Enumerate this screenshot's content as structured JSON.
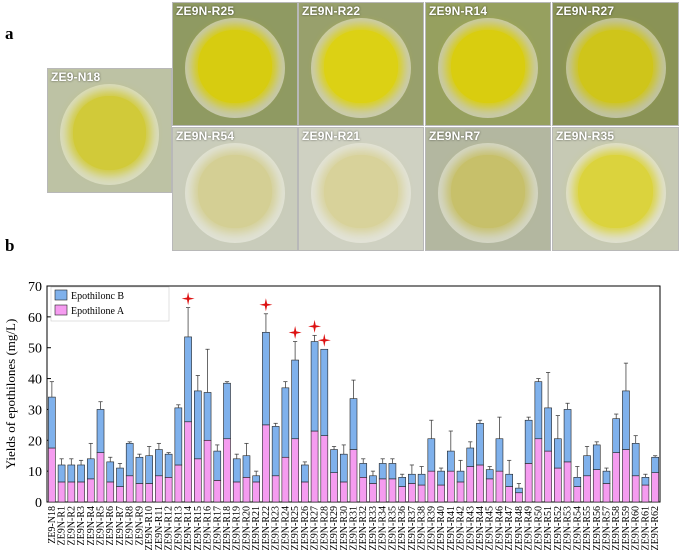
{
  "panel_labels": {
    "a": "a",
    "b": "b"
  },
  "photos": [
    {
      "name": "ZE9-N18",
      "plate": "#bdc2a4",
      "colony": "#d1ca39",
      "halo": "#d9dcc3"
    },
    {
      "name": "ZE9N-R25",
      "plate": "#8f9a62",
      "colony": "#d7cc10",
      "halo": "#c5c8ae"
    },
    {
      "name": "ZE9N-R22",
      "plate": "#98a06c",
      "colony": "#dcd114",
      "halo": "#c9cbb0"
    },
    {
      "name": "ZE9N-R14",
      "plate": "#96a05f",
      "colony": "#d9cd0f",
      "halo": "#c7c9ab"
    },
    {
      "name": "ZE9N-R27",
      "plate": "#8a9356",
      "colony": "#cfc51a",
      "halo": "#c0c3a5"
    },
    {
      "name": "ZE9N-R54",
      "plate": "#c9ccbb",
      "colony": "#d4cf94",
      "halo": "#e0e2d6"
    },
    {
      "name": "ZE9N-R21",
      "plate": "#cfd1c2",
      "colony": "#d8d29a",
      "halo": "#e2e3d8"
    },
    {
      "name": "ZE9N-R7",
      "plate": "#b3b7a0",
      "colony": "#c7c06a",
      "halo": "#d4d6c6"
    },
    {
      "name": "ZE9N-R35",
      "plate": "#c6c9b4",
      "colony": "#dbd33d",
      "halo": "#dfe0d2"
    }
  ],
  "chart_data": {
    "type": "bar",
    "stacked": true,
    "ylabel": "Yields of epothilones (mg/L)",
    "ylim": [
      0,
      70
    ],
    "yticks": [
      0,
      10,
      20,
      30,
      40,
      50,
      60,
      70
    ],
    "legend_position": "top-left",
    "categories": [
      "ZE9-N18",
      "ZE9N-R1",
      "ZE9N-R2",
      "ZE9N-R3",
      "ZE9N-R4",
      "ZE9N-R5",
      "ZE9N-R6",
      "ZE9N-R7",
      "ZE9N-R8",
      "ZE9N-R9",
      "ZE9N-R10",
      "ZE9N-R11",
      "ZE9N-R12",
      "ZE9N-R13",
      "ZE9N-R14",
      "ZE9N-R15",
      "ZE9N-R16",
      "ZE9N-R17",
      "ZE9N-R18",
      "ZE9N-R19",
      "ZE9N-R20",
      "ZE9N-R21",
      "ZE9N-R22",
      "ZE9N-R23",
      "ZE9N-R24",
      "ZE9N-R25",
      "ZE9N-R26",
      "ZE9N-R27",
      "ZE9N-R28",
      "ZE9N-R29",
      "ZE9N-R30",
      "ZE9N-R31",
      "ZE9N-R32",
      "ZE9N-R33",
      "ZE9N-R34",
      "ZE9N-R35",
      "ZE9N-R36",
      "ZE9N-R37",
      "ZE9N-R38",
      "ZE9N-R39",
      "ZE9N-R40",
      "ZE9N-R41",
      "ZE9N-R42",
      "ZE9N-R43",
      "ZE9N-R44",
      "ZE9N-R45",
      "ZE9N-R46",
      "ZE9N-R47",
      "ZE9N-R48",
      "ZE9N-R49",
      "ZE9N-R50",
      "ZE9N-R51",
      "ZE9N-R52",
      "ZE9N-R53",
      "ZE9N-R54",
      "ZE9N-R55",
      "ZE9N-R56",
      "ZE9N-R57",
      "ZE9N-R58",
      "ZE9N-R59",
      "ZE9N-R60",
      "ZE9N-R61",
      "ZE9N-R62"
    ],
    "series": [
      {
        "name": "Epothilone A",
        "color": "#f59cf0",
        "values": [
          17.5,
          6.5,
          6.5,
          6.5,
          7.5,
          16,
          6.5,
          5,
          8.5,
          6,
          6,
          8.5,
          8,
          12,
          26,
          14,
          20,
          7,
          20.5,
          6.5,
          8,
          6.5,
          25,
          8.5,
          14.5,
          20.5,
          6.5,
          23,
          21.5,
          9.5,
          6.5,
          17,
          8,
          6,
          7.5,
          7.5,
          5,
          6,
          5.5,
          10,
          5.5,
          10,
          6.5,
          11.5,
          12,
          7.5,
          10,
          5,
          3,
          12.5,
          20.5,
          16.5,
          11,
          13,
          5,
          8.5,
          10.5,
          6,
          16,
          17,
          8.5,
          5.5,
          9.5
        ]
      },
      {
        "name": "Epothilonc B",
        "color": "#7fb1ec",
        "values": [
          16.5,
          5.5,
          5.5,
          5.5,
          6.5,
          14,
          6.5,
          6,
          10.5,
          8.5,
          9,
          8.5,
          7.5,
          18.5,
          27.5,
          22,
          15.5,
          9.5,
          18,
          7.5,
          7,
          2,
          30,
          16,
          22.5,
          25.5,
          5.5,
          29,
          28,
          7.5,
          9,
          16.5,
          4.5,
          2.5,
          5,
          5,
          3,
          3,
          3.5,
          10.5,
          4.5,
          6.5,
          3.5,
          6,
          13.5,
          3,
          10.5,
          4,
          1.5,
          14,
          18.5,
          14,
          9.5,
          17,
          3,
          6.5,
          8,
          4,
          11,
          19,
          10.5,
          2.5,
          5
        ]
      },
      {
        "name": "error",
        "color": "#444444",
        "values": [
          5,
          2,
          2,
          1.5,
          5,
          2.5,
          1.5,
          1.5,
          0.5,
          1,
          3,
          2,
          0.5,
          1,
          9.5,
          5,
          14,
          2,
          0.5,
          1.5,
          4,
          1.5,
          6,
          1,
          2,
          6,
          1,
          2,
          0,
          1,
          3,
          6,
          1.5,
          1.5,
          1.5,
          1.5,
          1,
          3,
          2.5,
          6,
          1,
          6.5,
          3.5,
          2,
          1,
          1,
          7,
          4.5,
          1.5,
          1,
          1,
          11.5,
          7.5,
          2,
          3.5,
          3,
          1,
          1,
          1.5,
          9,
          2.5,
          1,
          0.5
        ]
      }
    ],
    "highlighted_categories": [
      "ZE9N-R14",
      "ZE9N-R22",
      "ZE9N-R25",
      "ZE9N-R27",
      "ZE9N-R28"
    ],
    "highlight_color": "#dd1111"
  }
}
